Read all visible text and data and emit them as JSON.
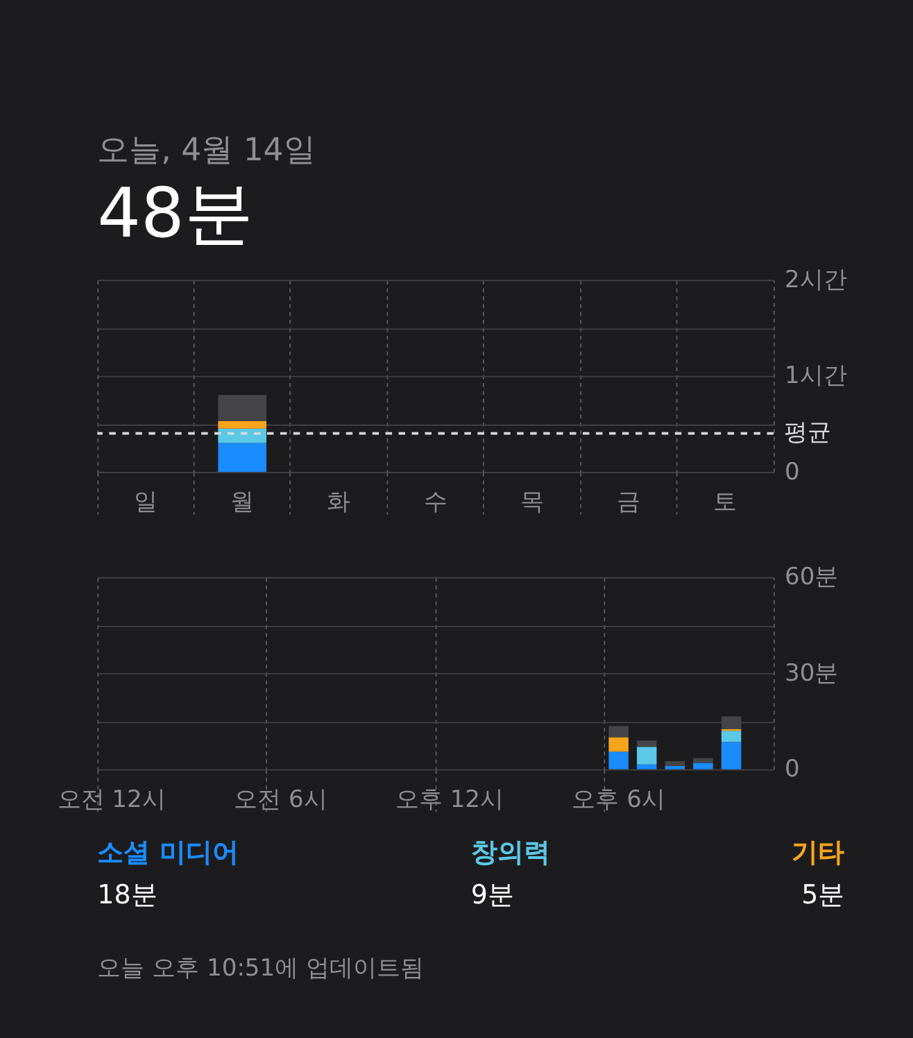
{
  "chart_data": [
    {
      "type": "bar",
      "title": "오늘, 4월 14일",
      "subtitle": "48분",
      "categories": [
        "일",
        "월",
        "화",
        "수",
        "목",
        "금",
        "토"
      ],
      "stacked": true,
      "series": [
        {
          "color": "#1a8cff",
          "values": [
            null,
            0.3,
            null,
            null,
            null,
            null,
            null
          ]
        },
        {
          "color": "#5ac8e6",
          "values": [
            null,
            0.15,
            null,
            null,
            null,
            null,
            null
          ]
        },
        {
          "color": "#f8a51c",
          "values": [
            null,
            0.08,
            null,
            null,
            null,
            null,
            null
          ]
        },
        {
          "color": "#454547",
          "values": [
            null,
            0.27,
            null,
            null,
            null,
            null,
            null
          ]
        }
      ],
      "ylim": [
        0,
        2
      ],
      "yticks": [
        {
          "value": 0,
          "label": "0"
        },
        {
          "value": 0.5,
          "label": null
        },
        {
          "value": 1,
          "label": "1시간"
        },
        {
          "value": 1.5,
          "label": null
        },
        {
          "value": 2,
          "label": "2시간"
        }
      ],
      "ref_lines": [
        {
          "axis": "y",
          "value": 0.4,
          "label": "평균",
          "color": "#d8d8d8",
          "line_style": "dashed"
        }
      ],
      "grid": true,
      "legend": false
    },
    {
      "type": "bar",
      "categories": [
        "오전 12시",
        null,
        null,
        null,
        null,
        null,
        "오전 6시",
        null,
        null,
        null,
        null,
        null,
        "오후 12시",
        null,
        null,
        null,
        null,
        null,
        "오후 6시",
        null,
        null,
        null,
        null,
        null
      ],
      "stacked": true,
      "series": [
        {
          "name": "소셜 미디어",
          "color": "#1a8cff",
          "values": [
            null,
            null,
            null,
            null,
            null,
            null,
            null,
            null,
            null,
            null,
            null,
            null,
            null,
            null,
            null,
            null,
            null,
            null,
            5.5,
            1.5,
            1,
            2,
            8.5,
            null
          ]
        },
        {
          "name": "창의력",
          "color": "#5ac8e6",
          "values": [
            null,
            null,
            null,
            null,
            null,
            null,
            null,
            null,
            null,
            null,
            null,
            null,
            null,
            null,
            null,
            null,
            null,
            null,
            null,
            5.5,
            null,
            null,
            3.5,
            null
          ]
        },
        {
          "name": "기타",
          "color": "#f8a51c",
          "values": [
            null,
            null,
            null,
            null,
            null,
            null,
            null,
            null,
            null,
            null,
            null,
            null,
            null,
            null,
            null,
            null,
            null,
            null,
            4.5,
            null,
            null,
            null,
            0.5,
            null
          ]
        },
        {
          "color": "#454547",
          "values": [
            null,
            null,
            null,
            null,
            null,
            null,
            null,
            null,
            null,
            null,
            null,
            null,
            null,
            null,
            null,
            null,
            null,
            null,
            3.5,
            2,
            1.5,
            1.5,
            4,
            null
          ]
        }
      ],
      "ylim": [
        0,
        60
      ],
      "yticks": [
        {
          "value": 0,
          "label": "0"
        },
        {
          "value": 15,
          "label": null
        },
        {
          "value": 30,
          "label": "30분"
        },
        {
          "value": 45,
          "label": null
        },
        {
          "value": 60,
          "label": "60분"
        }
      ],
      "grid": true,
      "legend": "bottom",
      "annotations": [
        "18분",
        "9분",
        "5분",
        "오늘 오후 10:51에 업데이트됨"
      ]
    }
  ]
}
